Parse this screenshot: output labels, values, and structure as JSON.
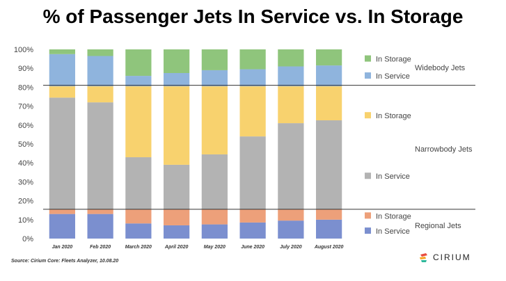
{
  "page": {
    "title": "% of Passenger Jets In Service vs. In Storage",
    "source": "Source: Cirium Core: Fleets Analyzer, 10.08.20",
    "logo_text": "CIRIUM"
  },
  "chart_data": {
    "type": "bar",
    "stacked": true,
    "title": "% of Passenger Jets In Service vs. In Storage",
    "categories": [
      "Jan 2020",
      "Feb 2020",
      "March 2020",
      "April 2020",
      "May 2020",
      "June 2020",
      "July 2020",
      "August 2020"
    ],
    "y_ticks": [
      "0%",
      "10%",
      "20%",
      "30%",
      "40%",
      "50%",
      "60%",
      "70%",
      "80%",
      "90%",
      "100%"
    ],
    "ylim": [
      0,
      100
    ],
    "series": [
      {
        "name": "In Service",
        "group": "Regional Jets",
        "color": "#7b8fcf",
        "values": [
          13,
          13,
          8,
          7,
          7.5,
          8.5,
          9.5,
          10
        ]
      },
      {
        "name": "In Storage",
        "group": "Regional Jets",
        "color": "#eda07a",
        "values": [
          2.5,
          2.5,
          7.5,
          8.5,
          8,
          7,
          6,
          5.5
        ]
      },
      {
        "name": "In Service",
        "group": "Narrowbody Jets",
        "color": "#b3b3b3",
        "values": [
          59,
          56.5,
          27.5,
          23.5,
          29,
          38.5,
          45.5,
          47
        ]
      },
      {
        "name": "In Storage",
        "group": "Narrowbody Jets",
        "color": "#f8d26e",
        "values": [
          6,
          8.5,
          37.5,
          41.5,
          36,
          26.5,
          19.5,
          18
        ]
      },
      {
        "name": "In Service",
        "group": "Widebody Jets",
        "color": "#8fb4dd",
        "values": [
          17,
          16,
          5.5,
          7,
          8.5,
          9,
          10.5,
          11
        ]
      },
      {
        "name": "In Storage",
        "group": "Widebody Jets",
        "color": "#8fc57c",
        "values": [
          2.5,
          3.5,
          14,
          12.5,
          11,
          10.5,
          9,
          8.5
        ]
      }
    ],
    "group_boundaries": [
      15.5,
      81
    ],
    "legend": [
      {
        "label": "In Storage",
        "color": "#8fc57c",
        "y": 95
      },
      {
        "label": "In Service",
        "color": "#8fb4dd",
        "y": 86
      },
      {
        "label": "In Storage",
        "color": "#f8d26e",
        "y": 65
      },
      {
        "label": "In Service",
        "color": "#b3b3b3",
        "y": 33
      },
      {
        "label": "In Storage",
        "color": "#eda07a",
        "y": 12
      },
      {
        "label": "In Service",
        "color": "#7b8fcf",
        "y": 4
      }
    ],
    "group_labels": [
      {
        "label": "Widebody Jets",
        "y": 90.5
      },
      {
        "label": "Narrowbody Jets",
        "y": 47.5
      },
      {
        "label": "Regional Jets",
        "y": 7
      }
    ],
    "legend_position": "right"
  }
}
